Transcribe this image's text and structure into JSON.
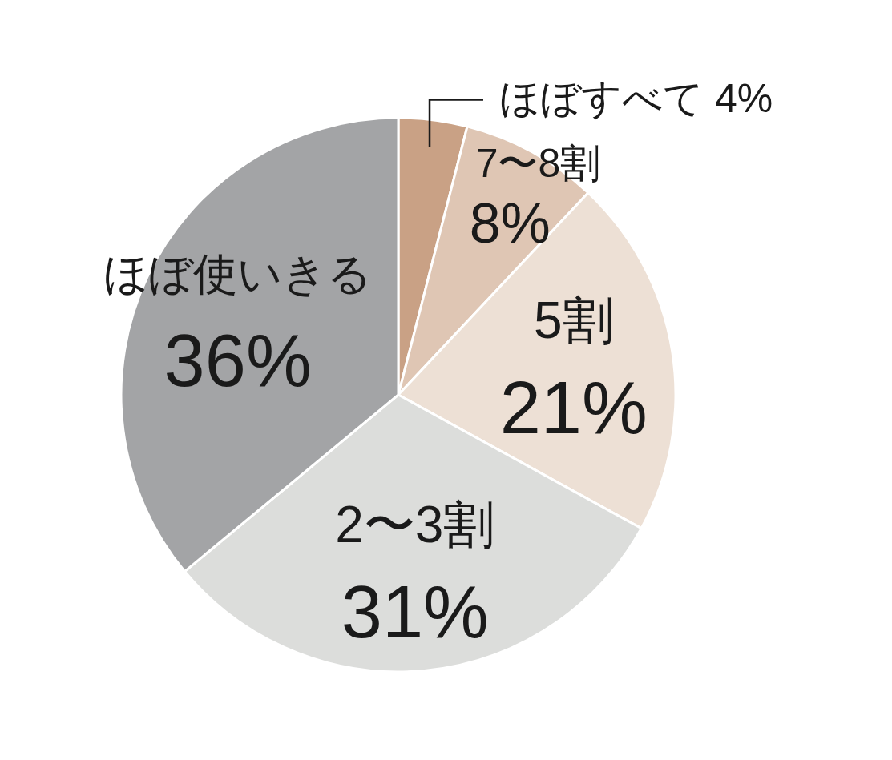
{
  "chart_data": {
    "type": "pie",
    "categories": [
      "ほぼすべて",
      "7〜8割",
      "5割",
      "2〜3割",
      "ほぼ使いきる"
    ],
    "values": [
      4,
      8,
      21,
      31,
      36
    ],
    "value_labels": [
      "4%",
      "8%",
      "21%",
      "31%",
      "36%"
    ],
    "colors": [
      "#c9a185",
      "#dfc6b4",
      "#ede0d5",
      "#dcdddb",
      "#a3a4a6"
    ]
  }
}
